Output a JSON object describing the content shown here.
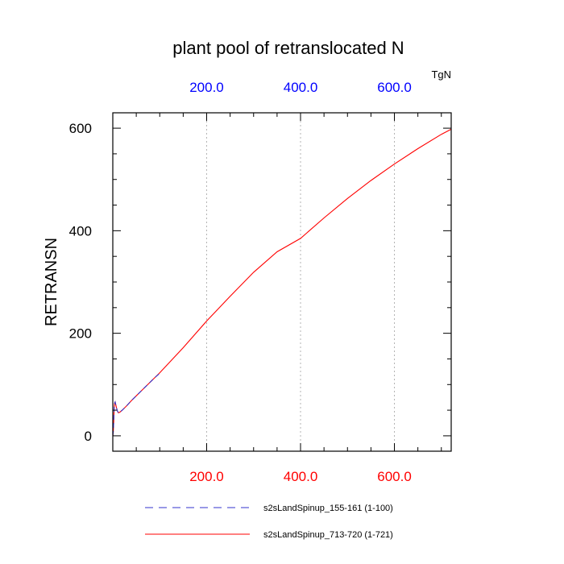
{
  "chart_data": {
    "type": "line",
    "title": "plant pool of retranslocated N",
    "ylabel": "RETRANSN",
    "units": "TgN",
    "xlim": [
      0,
      721
    ],
    "ylim": [
      -30,
      630
    ],
    "x_ticks": [
      200,
      400,
      600
    ],
    "x_tick_labels": [
      "200.0",
      "400.0",
      "600.0"
    ],
    "x_minor_step": 50,
    "y_ticks": [
      0,
      200,
      400,
      600
    ],
    "y_tick_labels": [
      "0",
      "200",
      "400",
      "600"
    ],
    "y_minor_step": 50,
    "grid": "vertical-dotted",
    "legend_position": "bottom",
    "colors": {
      "bottom_tick_labels": "#ff0000",
      "top_tick_labels": "#0000ff",
      "grid": "#b4b4b4",
      "axes": "#000000"
    },
    "series": [
      {
        "name": "s2sLandSpinup_155-161 (1-100)",
        "color": "#3333cc",
        "dash": "dashed",
        "x": [
          0,
          1,
          2,
          3,
          4,
          5,
          6,
          8,
          10,
          12,
          15,
          20,
          30,
          40,
          50,
          60,
          70,
          80,
          90,
          100
        ],
        "y": [
          0,
          8,
          30,
          55,
          64,
          66,
          62,
          54,
          48,
          45,
          46,
          50,
          59,
          69,
          78,
          87,
          96,
          105,
          114,
          122
        ]
      },
      {
        "name": "s2sLandSpinup_713-720 (1-721)",
        "color": "#ff0000",
        "dash": "solid",
        "x": [
          0,
          1,
          2,
          3,
          4,
          5,
          6,
          8,
          10,
          12,
          15,
          20,
          30,
          40,
          50,
          60,
          80,
          100,
          150,
          200,
          250,
          300,
          350,
          400,
          450,
          500,
          550,
          600,
          650,
          700,
          721
        ],
        "y": [
          0,
          8,
          30,
          55,
          64,
          66,
          62,
          54,
          48,
          45,
          46,
          50,
          59,
          69,
          78,
          87,
          105,
          123,
          172,
          224,
          272,
          319,
          359,
          385,
          425,
          463,
          498,
          530,
          560,
          588,
          598
        ]
      }
    ]
  }
}
